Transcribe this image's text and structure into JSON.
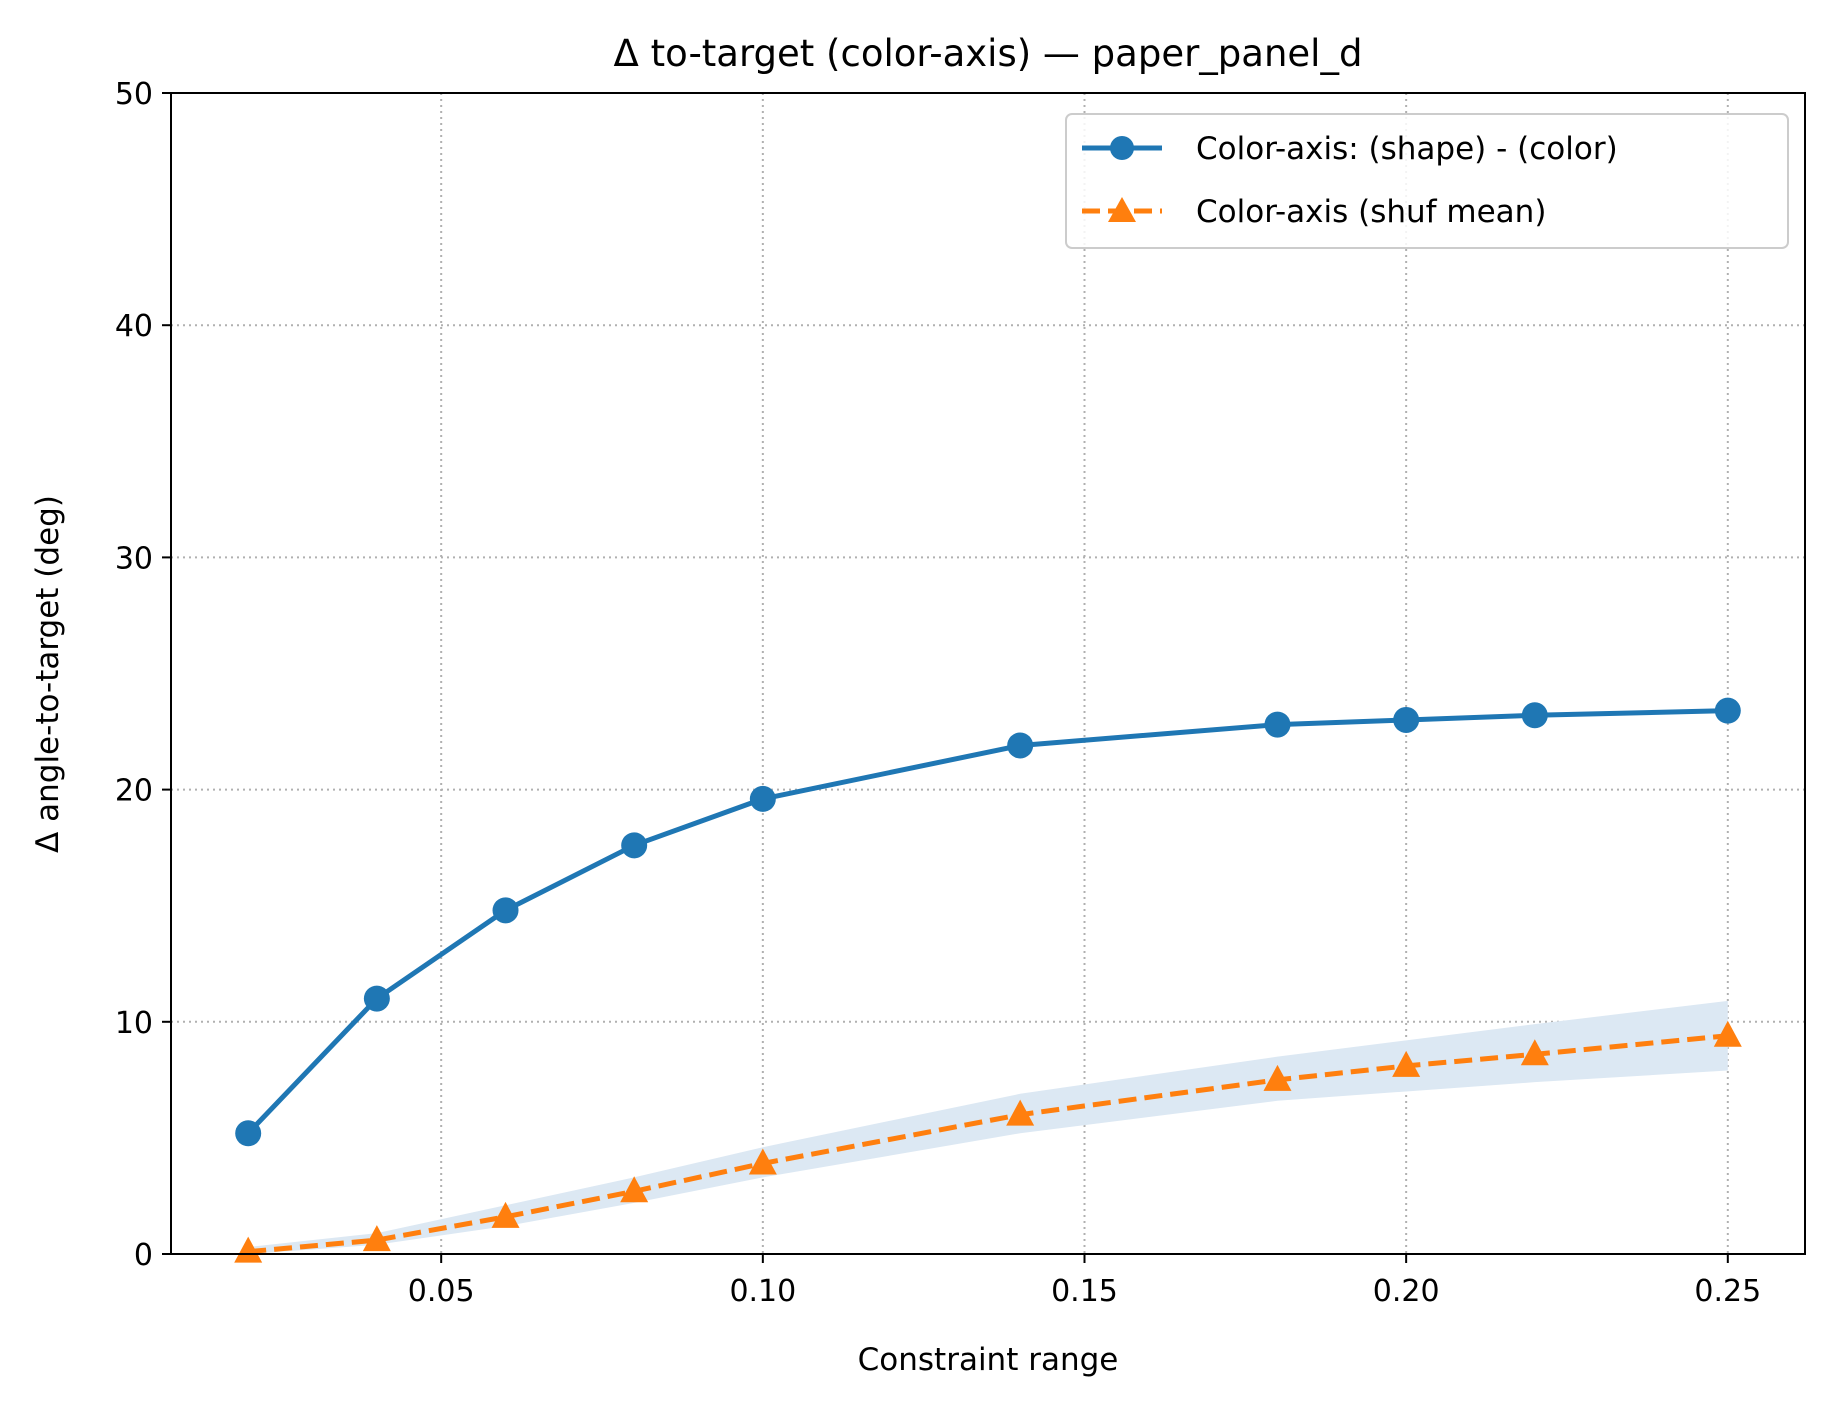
{
  "chart_data": {
    "type": "line",
    "title": "Δ to-target (color-axis) — paper_panel_d",
    "xlabel": "Constraint range",
    "ylabel": "Δ angle-to-target (deg)",
    "xlim": [
      0.008,
      0.262
    ],
    "ylim": [
      0,
      50
    ],
    "xticks": [
      0.05,
      0.1,
      0.15,
      0.2,
      0.25
    ],
    "xtick_labels": [
      "0.05",
      "0.10",
      "0.15",
      "0.20",
      "0.25"
    ],
    "yticks": [
      0,
      10,
      20,
      30,
      40,
      50
    ],
    "ytick_labels": [
      "0",
      "10",
      "20",
      "30",
      "40",
      "50"
    ],
    "grid": true,
    "legend_position": "top-right",
    "x": [
      0.02,
      0.04,
      0.06,
      0.08,
      0.1,
      0.14,
      0.18,
      0.2,
      0.22,
      0.25
    ],
    "series": [
      {
        "name": "Color-axis: (shape) - (color)",
        "color": "#1f77b4",
        "marker": "circle",
        "line_style": "solid",
        "values": [
          5.2,
          11.0,
          14.8,
          17.6,
          19.6,
          21.9,
          22.8,
          23.0,
          23.2,
          23.4
        ]
      },
      {
        "name": "Color-axis (shuf mean)",
        "color": "#ff7f0e",
        "marker": "triangle",
        "line_style": "dashed",
        "values": [
          0.1,
          0.6,
          1.6,
          2.7,
          3.9,
          6.0,
          7.5,
          8.1,
          8.6,
          9.4
        ],
        "band_color": "#dce8f3",
        "band_lower": [
          0.0,
          0.4,
          1.2,
          2.2,
          3.3,
          5.2,
          6.6,
          7.0,
          7.4,
          7.9
        ],
        "band_upper": [
          0.3,
          0.9,
          2.1,
          3.3,
          4.6,
          6.9,
          8.5,
          9.2,
          9.9,
          10.9
        ]
      }
    ]
  }
}
